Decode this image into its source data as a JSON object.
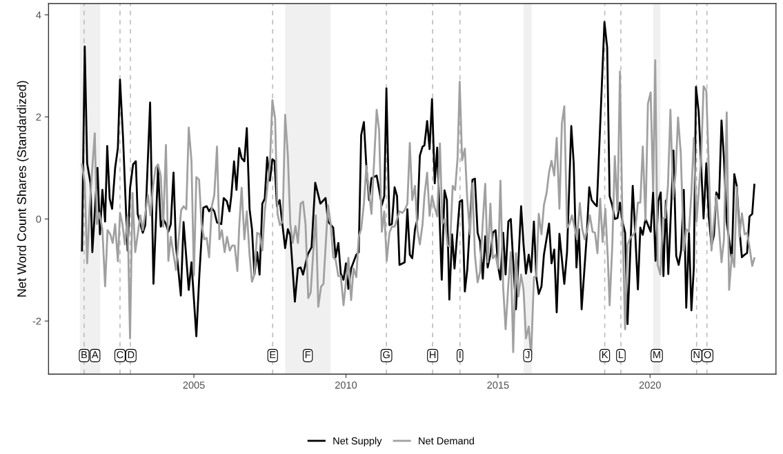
{
  "chart_data": {
    "type": "line",
    "ylabel": "Net Word Count Shares (Standardized)",
    "xlim": [
      2000.22,
      2024.14
    ],
    "xticks": [
      2005,
      2010,
      2015,
      2020
    ],
    "ylim": [
      -3.04,
      4.22
    ],
    "yticks": [
      -2,
      0,
      2,
      4
    ],
    "grid": false,
    "legend": "bottom",
    "line_style": "solid",
    "marker": "none",
    "bands": [
      {
        "axis": "x",
        "from": 2001.25,
        "to": 2001.92,
        "label": "A",
        "color": "#f0f0f0"
      },
      {
        "axis": "x",
        "from": 2008.0,
        "to": 2009.49,
        "label": "F",
        "color": "#f0f0f0"
      },
      {
        "axis": "x",
        "from": 2015.84,
        "to": 2016.11,
        "label": "J",
        "color": "#f0f0f0"
      },
      {
        "axis": "x",
        "from": 2020.1,
        "to": 2020.34,
        "label": "M",
        "color": "#f0f0f0"
      }
    ],
    "ref_lines": [
      {
        "axis": "x",
        "value": 2001.39,
        "label": "B",
        "color": "#bdbdbd",
        "line_style": "dashed"
      },
      {
        "axis": "x",
        "value": 2002.57,
        "label": "C",
        "color": "#bdbdbd",
        "line_style": "dashed"
      },
      {
        "axis": "x",
        "value": 2002.91,
        "label": "D",
        "color": "#bdbdbd",
        "line_style": "dashed"
      },
      {
        "axis": "x",
        "value": 2007.59,
        "label": "E",
        "color": "#bdbdbd",
        "line_style": "dashed"
      },
      {
        "axis": "x",
        "value": 2011.33,
        "label": "G",
        "color": "#bdbdbd",
        "line_style": "dashed"
      },
      {
        "axis": "x",
        "value": 2012.85,
        "label": "H",
        "color": "#bdbdbd",
        "line_style": "dashed"
      },
      {
        "axis": "x",
        "value": 2013.75,
        "label": "I",
        "color": "#bdbdbd",
        "line_style": "dashed"
      },
      {
        "axis": "x",
        "value": 2018.51,
        "label": "K",
        "color": "#bdbdbd",
        "line_style": "dashed"
      },
      {
        "axis": "x",
        "value": 2019.04,
        "label": "L",
        "color": "#bdbdbd",
        "line_style": "dashed"
      },
      {
        "axis": "x",
        "value": 2021.53,
        "label": "N",
        "color": "#bdbdbd",
        "line_style": "dashed"
      },
      {
        "axis": "x",
        "value": 2021.87,
        "label": "O",
        "color": "#bdbdbd",
        "line_style": "dashed"
      }
    ],
    "series": [
      {
        "name": "Net Supply",
        "color": "#000000",
        "x": [
          2001.32,
          2001.41,
          2001.49,
          2001.6,
          2001.66,
          2001.83,
          2001.91,
          2001.99,
          2002.08,
          2002.15,
          2002.23,
          2002.31,
          2002.41,
          2002.5,
          2002.57,
          2002.67,
          2002.82,
          2002.9,
          2003.0,
          2003.09,
          2003.15,
          2003.24,
          2003.32,
          2003.4,
          2003.56,
          2003.67,
          2003.82,
          2003.91,
          2003.99,
          2004.08,
          2004.16,
          2004.24,
          2004.33,
          2004.41,
          2004.57,
          2004.66,
          2004.83,
          2004.92,
          2005.08,
          2005.18,
          2005.31,
          2005.42,
          2005.5,
          2005.58,
          2005.67,
          2005.76,
          2005.9,
          2005.98,
          2006.08,
          2006.17,
          2006.23,
          2006.32,
          2006.4,
          2006.49,
          2006.57,
          2006.66,
          2006.74,
          2006.83,
          2006.91,
          2006.99,
          2007.08,
          2007.16,
          2007.25,
          2007.33,
          2007.41,
          2007.5,
          2007.58,
          2007.65,
          2007.73,
          2007.82,
          2007.9,
          2008.0,
          2008.09,
          2008.17,
          2008.32,
          2008.42,
          2008.51,
          2008.59,
          2008.74,
          2008.87,
          2008.99,
          2009.16,
          2009.33,
          2009.41,
          2009.58,
          2009.66,
          2009.75,
          2009.83,
          2009.92,
          2010.0,
          2010.08,
          2010.17,
          2010.34,
          2010.42,
          2010.5,
          2010.59,
          2010.67,
          2010.76,
          2010.84,
          2011.01,
          2011.18,
          2011.26,
          2011.33,
          2011.43,
          2011.51,
          2011.6,
          2011.68,
          2011.76,
          2011.93,
          2012.02,
          2012.1,
          2012.18,
          2012.27,
          2012.35,
          2012.43,
          2012.52,
          2012.58,
          2012.67,
          2012.75,
          2012.83,
          2012.92,
          2013.0,
          2013.15,
          2013.24,
          2013.32,
          2013.4,
          2013.49,
          2013.57,
          2013.74,
          2013.82,
          2013.91,
          2013.99,
          2014.16,
          2014.24,
          2014.33,
          2014.41,
          2014.5,
          2014.58,
          2014.66,
          2014.75,
          2014.83,
          2014.92,
          2015.0,
          2015.08,
          2015.17,
          2015.25,
          2015.34,
          2015.42,
          2015.59,
          2015.67,
          2015.76,
          2015.84,
          2015.92,
          2016.01,
          2016.09,
          2016.18,
          2016.26,
          2016.34,
          2016.43,
          2016.51,
          2016.68,
          2016.76,
          2016.85,
          2016.93,
          2017.02,
          2017.18,
          2017.27,
          2017.41,
          2017.49,
          2017.58,
          2017.66,
          2017.75,
          2017.91,
          2018.0,
          2018.08,
          2018.17,
          2018.25,
          2018.5,
          2018.59,
          2018.67,
          2018.76,
          2018.84,
          2018.93,
          2019.01,
          2019.09,
          2019.18,
          2019.26,
          2019.43,
          2019.51,
          2019.6,
          2019.68,
          2019.76,
          2019.85,
          2020.02,
          2020.1,
          2020.18,
          2020.27,
          2020.35,
          2020.44,
          2020.52,
          2020.6,
          2020.77,
          2020.86,
          2020.94,
          2021.02,
          2021.11,
          2021.19,
          2021.28,
          2021.36,
          2021.44,
          2021.51,
          2021.6,
          2021.68,
          2021.76,
          2021.85,
          2021.93,
          2022.02,
          2022.1,
          2022.18,
          2022.27,
          2022.35,
          2022.43,
          2022.52,
          2022.69,
          2022.77,
          2022.85,
          2022.94,
          2023.02,
          2023.11,
          2023.19,
          2023.27,
          2023.36,
          2023.43
        ],
        "values": [
          -0.62,
          3.38,
          1.09,
          0.7,
          -0.65,
          1.0,
          -0.3,
          0.57,
          -0.05,
          1.43,
          0.4,
          0.2,
          1.0,
          1.39,
          2.73,
          1.59,
          -0.62,
          0.6,
          1.07,
          1.13,
          0.1,
          -0.1,
          -0.27,
          -0.12,
          2.28,
          -1.27,
          1.0,
          -0.15,
          0.0,
          -0.1,
          -0.25,
          -0.1,
          0.91,
          -0.52,
          -1.5,
          -0.06,
          -1.39,
          -0.85,
          -2.3,
          -1.09,
          0.22,
          0.25,
          0.15,
          0.22,
          0.15,
          -0.07,
          -0.1,
          0.41,
          0.35,
          0.15,
          0.45,
          1.13,
          0.57,
          1.39,
          1.19,
          1.13,
          1.78,
          0.2,
          -0.2,
          -1.09,
          -0.65,
          -1.09,
          0.3,
          0.4,
          1.21,
          0.75,
          1.17,
          1.14,
          0.25,
          0.37,
          -0.05,
          -0.57,
          -0.2,
          -0.32,
          -1.62,
          -0.97,
          -0.95,
          -1.09,
          -0.7,
          -0.55,
          0.71,
          0.3,
          0.41,
          -0.05,
          -0.17,
          -0.75,
          -0.47,
          -1.07,
          -1.19,
          -0.87,
          -1.37,
          -0.97,
          -0.7,
          -0.65,
          1.64,
          1.9,
          1.04,
          0.37,
          0.8,
          0.85,
          0.27,
          0.45,
          2.56,
          -0.12,
          -0.1,
          0.62,
          0.45,
          -0.9,
          -0.85,
          0.19,
          -0.7,
          -0.77,
          -0.2,
          0.0,
          1.24,
          1.42,
          1.44,
          1.92,
          1.37,
          2.35,
          0.7,
          1.4,
          -1.19,
          0.56,
          0.37,
          -1.58,
          -0.3,
          -0.97,
          0.34,
          0.37,
          -1.42,
          -0.99,
          0.77,
          0.79,
          -0.27,
          -0.44,
          -1.17,
          -0.34,
          -0.95,
          -0.7,
          -0.27,
          -0.22,
          -0.92,
          -1.19,
          -0.27,
          -1.09,
          -0.05,
          0.0,
          -1.77,
          -0.85,
          0.25,
          -0.5,
          -1.07,
          -0.7,
          -1.04,
          -0.05,
          -1.14,
          -1.47,
          -1.32,
          -0.7,
          -0.09,
          -0.87,
          -0.6,
          -1.83,
          -0.29,
          -1.27,
          -0.65,
          1.82,
          1.09,
          -0.95,
          -0.2,
          -1.77,
          -0.4,
          0.62,
          0.37,
          0.3,
          0.25,
          3.86,
          3.36,
          0.45,
          0.26,
          0.0,
          0.02,
          0.32,
          -0.05,
          -0.27,
          -2.06,
          0.65,
          -0.25,
          -1.38,
          -0.17,
          -0.31,
          0.0,
          -0.25,
          0.52,
          -0.82,
          0.35,
          0.52,
          -1.12,
          0.36,
          -1.08,
          1.34,
          -0.72,
          -0.9,
          -0.62,
          0.57,
          -1.74,
          -0.27,
          -1.79,
          -0.95,
          2.59,
          2.09,
          1.04,
          0.01,
          1.09,
          0.05,
          -0.52,
          -0.32,
          0.52,
          0.4,
          1.93,
          1.19,
          -0.05,
          -0.8,
          0.88,
          0.65,
          -0.2,
          -0.75,
          -0.7,
          -0.67,
          0.05,
          0.1,
          0.67
        ]
      },
      {
        "name": "Net Demand",
        "color": "#a0a0a0",
        "x": [
          2001.32,
          2001.41,
          2001.49,
          2001.57,
          2001.66,
          2001.74,
          2001.81,
          2001.89,
          2001.99,
          2002.08,
          2002.16,
          2002.25,
          2002.33,
          2002.41,
          2002.5,
          2002.57,
          2002.65,
          2002.73,
          2002.82,
          2002.9,
          2002.98,
          2003.07,
          2003.24,
          2003.32,
          2003.49,
          2003.57,
          2003.66,
          2003.74,
          2003.82,
          2003.91,
          2003.99,
          2004.08,
          2004.16,
          2004.24,
          2004.41,
          2004.58,
          2004.66,
          2004.75,
          2004.83,
          2004.92,
          2005.0,
          2005.08,
          2005.17,
          2005.25,
          2005.34,
          2005.42,
          2005.5,
          2005.59,
          2005.67,
          2005.76,
          2005.84,
          2005.92,
          2006.01,
          2006.09,
          2006.18,
          2006.26,
          2006.34,
          2006.43,
          2006.49,
          2006.57,
          2006.66,
          2006.74,
          2006.83,
          2006.91,
          2006.99,
          2007.08,
          2007.16,
          2007.25,
          2007.33,
          2007.5,
          2007.58,
          2007.67,
          2007.75,
          2007.83,
          2007.92,
          2008.0,
          2008.09,
          2008.17,
          2008.25,
          2008.34,
          2008.42,
          2008.51,
          2008.59,
          2008.67,
          2008.76,
          2008.84,
          2008.93,
          2009.01,
          2009.09,
          2009.18,
          2009.26,
          2009.41,
          2009.5,
          2009.58,
          2009.66,
          2009.75,
          2009.83,
          2009.92,
          2010.08,
          2010.17,
          2010.25,
          2010.34,
          2010.42,
          2010.5,
          2010.59,
          2010.67,
          2010.76,
          2010.84,
          2011.01,
          2011.09,
          2011.18,
          2011.26,
          2011.34,
          2011.43,
          2011.51,
          2011.6,
          2011.76,
          2011.85,
          2011.93,
          2012.02,
          2012.1,
          2012.18,
          2012.27,
          2012.35,
          2012.43,
          2012.52,
          2012.58,
          2012.67,
          2012.75,
          2012.83,
          2012.92,
          2013.0,
          2013.09,
          2013.17,
          2013.25,
          2013.34,
          2013.42,
          2013.51,
          2013.59,
          2013.67,
          2013.74,
          2013.82,
          2013.91,
          2013.99,
          2014.08,
          2014.16,
          2014.24,
          2014.33,
          2014.41,
          2014.5,
          2014.58,
          2014.66,
          2014.75,
          2014.83,
          2014.92,
          2015.0,
          2015.08,
          2015.17,
          2015.25,
          2015.34,
          2015.42,
          2015.5,
          2015.59,
          2015.67,
          2015.76,
          2015.84,
          2015.92,
          2016.01,
          2016.09,
          2016.18,
          2016.26,
          2016.34,
          2016.43,
          2016.51,
          2016.6,
          2016.68,
          2016.76,
          2016.85,
          2016.93,
          2017.02,
          2017.1,
          2017.18,
          2017.27,
          2017.35,
          2017.43,
          2017.52,
          2017.6,
          2017.69,
          2017.77,
          2017.85,
          2017.94,
          2018.02,
          2018.11,
          2018.19,
          2018.27,
          2018.36,
          2018.44,
          2018.53,
          2018.61,
          2018.67,
          2018.76,
          2018.84,
          2018.93,
          2019.01,
          2019.09,
          2019.18,
          2019.26,
          2019.35,
          2019.43,
          2019.51,
          2019.6,
          2019.68,
          2019.76,
          2019.85,
          2019.93,
          2020.02,
          2020.1,
          2020.17,
          2020.25,
          2020.34,
          2020.42,
          2020.5,
          2020.59,
          2020.67,
          2020.76,
          2020.84,
          2020.92,
          2021.01,
          2021.11,
          2021.19,
          2021.28,
          2021.36,
          2021.44,
          2021.53,
          2021.68,
          2021.76,
          2021.85,
          2021.93,
          2022.02,
          2022.1,
          2022.18,
          2022.27,
          2022.35,
          2022.43,
          2022.52,
          2022.6,
          2022.69,
          2022.77,
          2022.85,
          2022.94,
          2023.02,
          2023.11,
          2023.19,
          2023.27,
          2023.36,
          2023.43
        ],
        "values": [
          1.07,
          0.7,
          -0.87,
          0.22,
          1.0,
          1.68,
          -0.1,
          0.12,
          -0.2,
          -1.32,
          -0.22,
          -0.3,
          -0.47,
          -0.1,
          -0.83,
          0.12,
          -0.1,
          -0.5,
          0.05,
          -2.34,
          0.51,
          -0.65,
          0.07,
          -0.22,
          0.47,
          0.07,
          0.65,
          1.0,
          1.07,
          0.85,
          -0.15,
          1.45,
          -0.82,
          -0.35,
          -1.0,
          0.17,
          0.25,
          0.19,
          1.79,
          1.14,
          -1.11,
          0.82,
          0.77,
          -0.1,
          -0.4,
          -0.37,
          -0.75,
          0.25,
          0.47,
          1.42,
          -0.4,
          -0.22,
          -0.65,
          -0.35,
          -0.62,
          -0.52,
          -0.52,
          -1.02,
          -0.15,
          0.61,
          -0.4,
          0.15,
          -0.7,
          -1.23,
          -1.09,
          -0.27,
          -0.3,
          -0.62,
          0.15,
          1.09,
          2.33,
          1.97,
          0.1,
          -0.12,
          -0.05,
          2.04,
          1.24,
          -0.1,
          -0.47,
          -0.14,
          -0.47,
          0.3,
          0.34,
          -0.1,
          -1.55,
          -1.44,
          -0.6,
          0.07,
          -1.72,
          -1.33,
          -1.27,
          0.27,
          -0.1,
          -0.75,
          -0.8,
          -1.12,
          -1.12,
          -1.69,
          -0.76,
          -1.59,
          -0.97,
          -1.14,
          -0.35,
          -0.2,
          0.3,
          1.04,
          0.5,
          0.1,
          2.14,
          1.74,
          -0.25,
          0.15,
          -0.82,
          -0.27,
          -0.15,
          -0.15,
          0.15,
          0.12,
          0.17,
          0.3,
          1.49,
          0.37,
          0.65,
          -0.22,
          -0.5,
          -0.1,
          0.45,
          0.91,
          0.06,
          0.45,
          0.22,
          0.05,
          1.48,
          -0.1,
          0.0,
          -0.52,
          -0.54,
          0.65,
          0.57,
          1.19,
          2.69,
          1.15,
          1.38,
          0.37,
          -0.3,
          0.7,
          -0.7,
          -1.24,
          -1.04,
          -0.05,
          0.69,
          -0.85,
          0.3,
          -0.77,
          -0.7,
          -0.97,
          0.75,
          -1.34,
          -2.16,
          -1.29,
          -0.65,
          -2.61,
          -0.67,
          -1.52,
          -1.09,
          -1.39,
          -2.34,
          -2.11,
          -2.69,
          -1.14,
          -1.12,
          0.1,
          -0.3,
          0.27,
          0.52,
          0.92,
          1.14,
          0.85,
          1.59,
          0.2,
          1.87,
          2.21,
          -0.17,
          -0.1,
          0.07,
          -0.17,
          -0.4,
          0.31,
          -0.2,
          -0.4,
          -0.2,
          0.07,
          -0.25,
          -0.27,
          -0.67,
          0.4,
          -0.45,
          0.2,
          -0.75,
          -1.69,
          -0.5,
          1.23,
          0.15,
          2.89,
          0.0,
          -2.16,
          -0.5,
          -0.37,
          -0.32,
          -0.25,
          0.32,
          0.32,
          1.42,
          -0.02,
          2.26,
          2.48,
          0.55,
          3.11,
          -0.9,
          -1.09,
          0.02,
          0.02,
          0.67,
          2.14,
          0.4,
          0.9,
          1.99,
          1.29,
          -0.62,
          -0.2,
          -0.25,
          0.52,
          1.59,
          -0.05,
          1.19,
          2.6,
          2.51,
          1.04,
          -0.62,
          -0.05,
          0.45,
          -0.2,
          -0.85,
          -0.4,
          2.09,
          -1.39,
          -0.7,
          -0.94,
          0.62,
          -0.35,
          0.11,
          -0.3,
          -0.27,
          -0.55,
          -0.92,
          -0.77
        ]
      }
    ]
  }
}
